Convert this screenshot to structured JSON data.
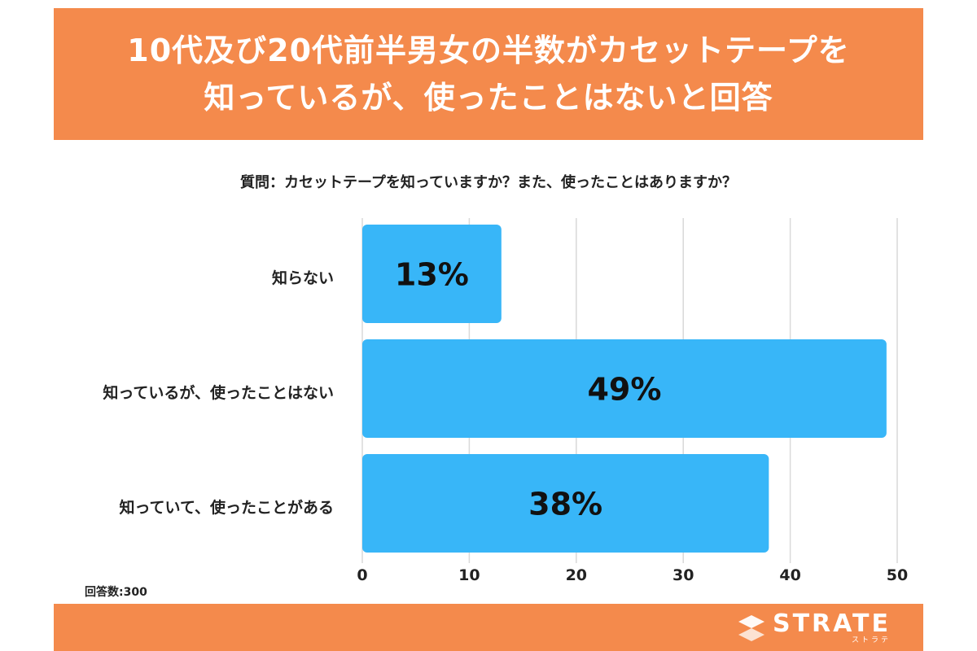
{
  "header": {
    "title_line1": "10代及び20代前半男女の半数がカセットテープを",
    "title_line2": "知っているが、使ったことはないと回答"
  },
  "question": "質問：カセットテープを知っていますか？また、使ったことはありますか？",
  "respondents": "回答数:300",
  "brand": {
    "name": "STRATE",
    "kana": "ストラテ",
    "icon": "strate-s-logo-icon"
  },
  "colors": {
    "banner": "#f48a4c",
    "bar": "#38b6f8",
    "grid": "#d9d9d9"
  },
  "chart_data": {
    "type": "bar",
    "orientation": "horizontal",
    "title": "質問：カセットテープを知っていますか？また、使ったことはありますか？",
    "categories": [
      "知らない",
      "知っているが、使ったことはない",
      "知っていて、使ったことがある"
    ],
    "values": [
      13,
      49,
      38
    ],
    "data_labels": [
      "13%",
      "49%",
      "38%"
    ],
    "xlim": [
      0,
      50
    ],
    "xticks": [
      "0",
      "10",
      "20",
      "30",
      "40",
      "50"
    ],
    "grid": true
  }
}
